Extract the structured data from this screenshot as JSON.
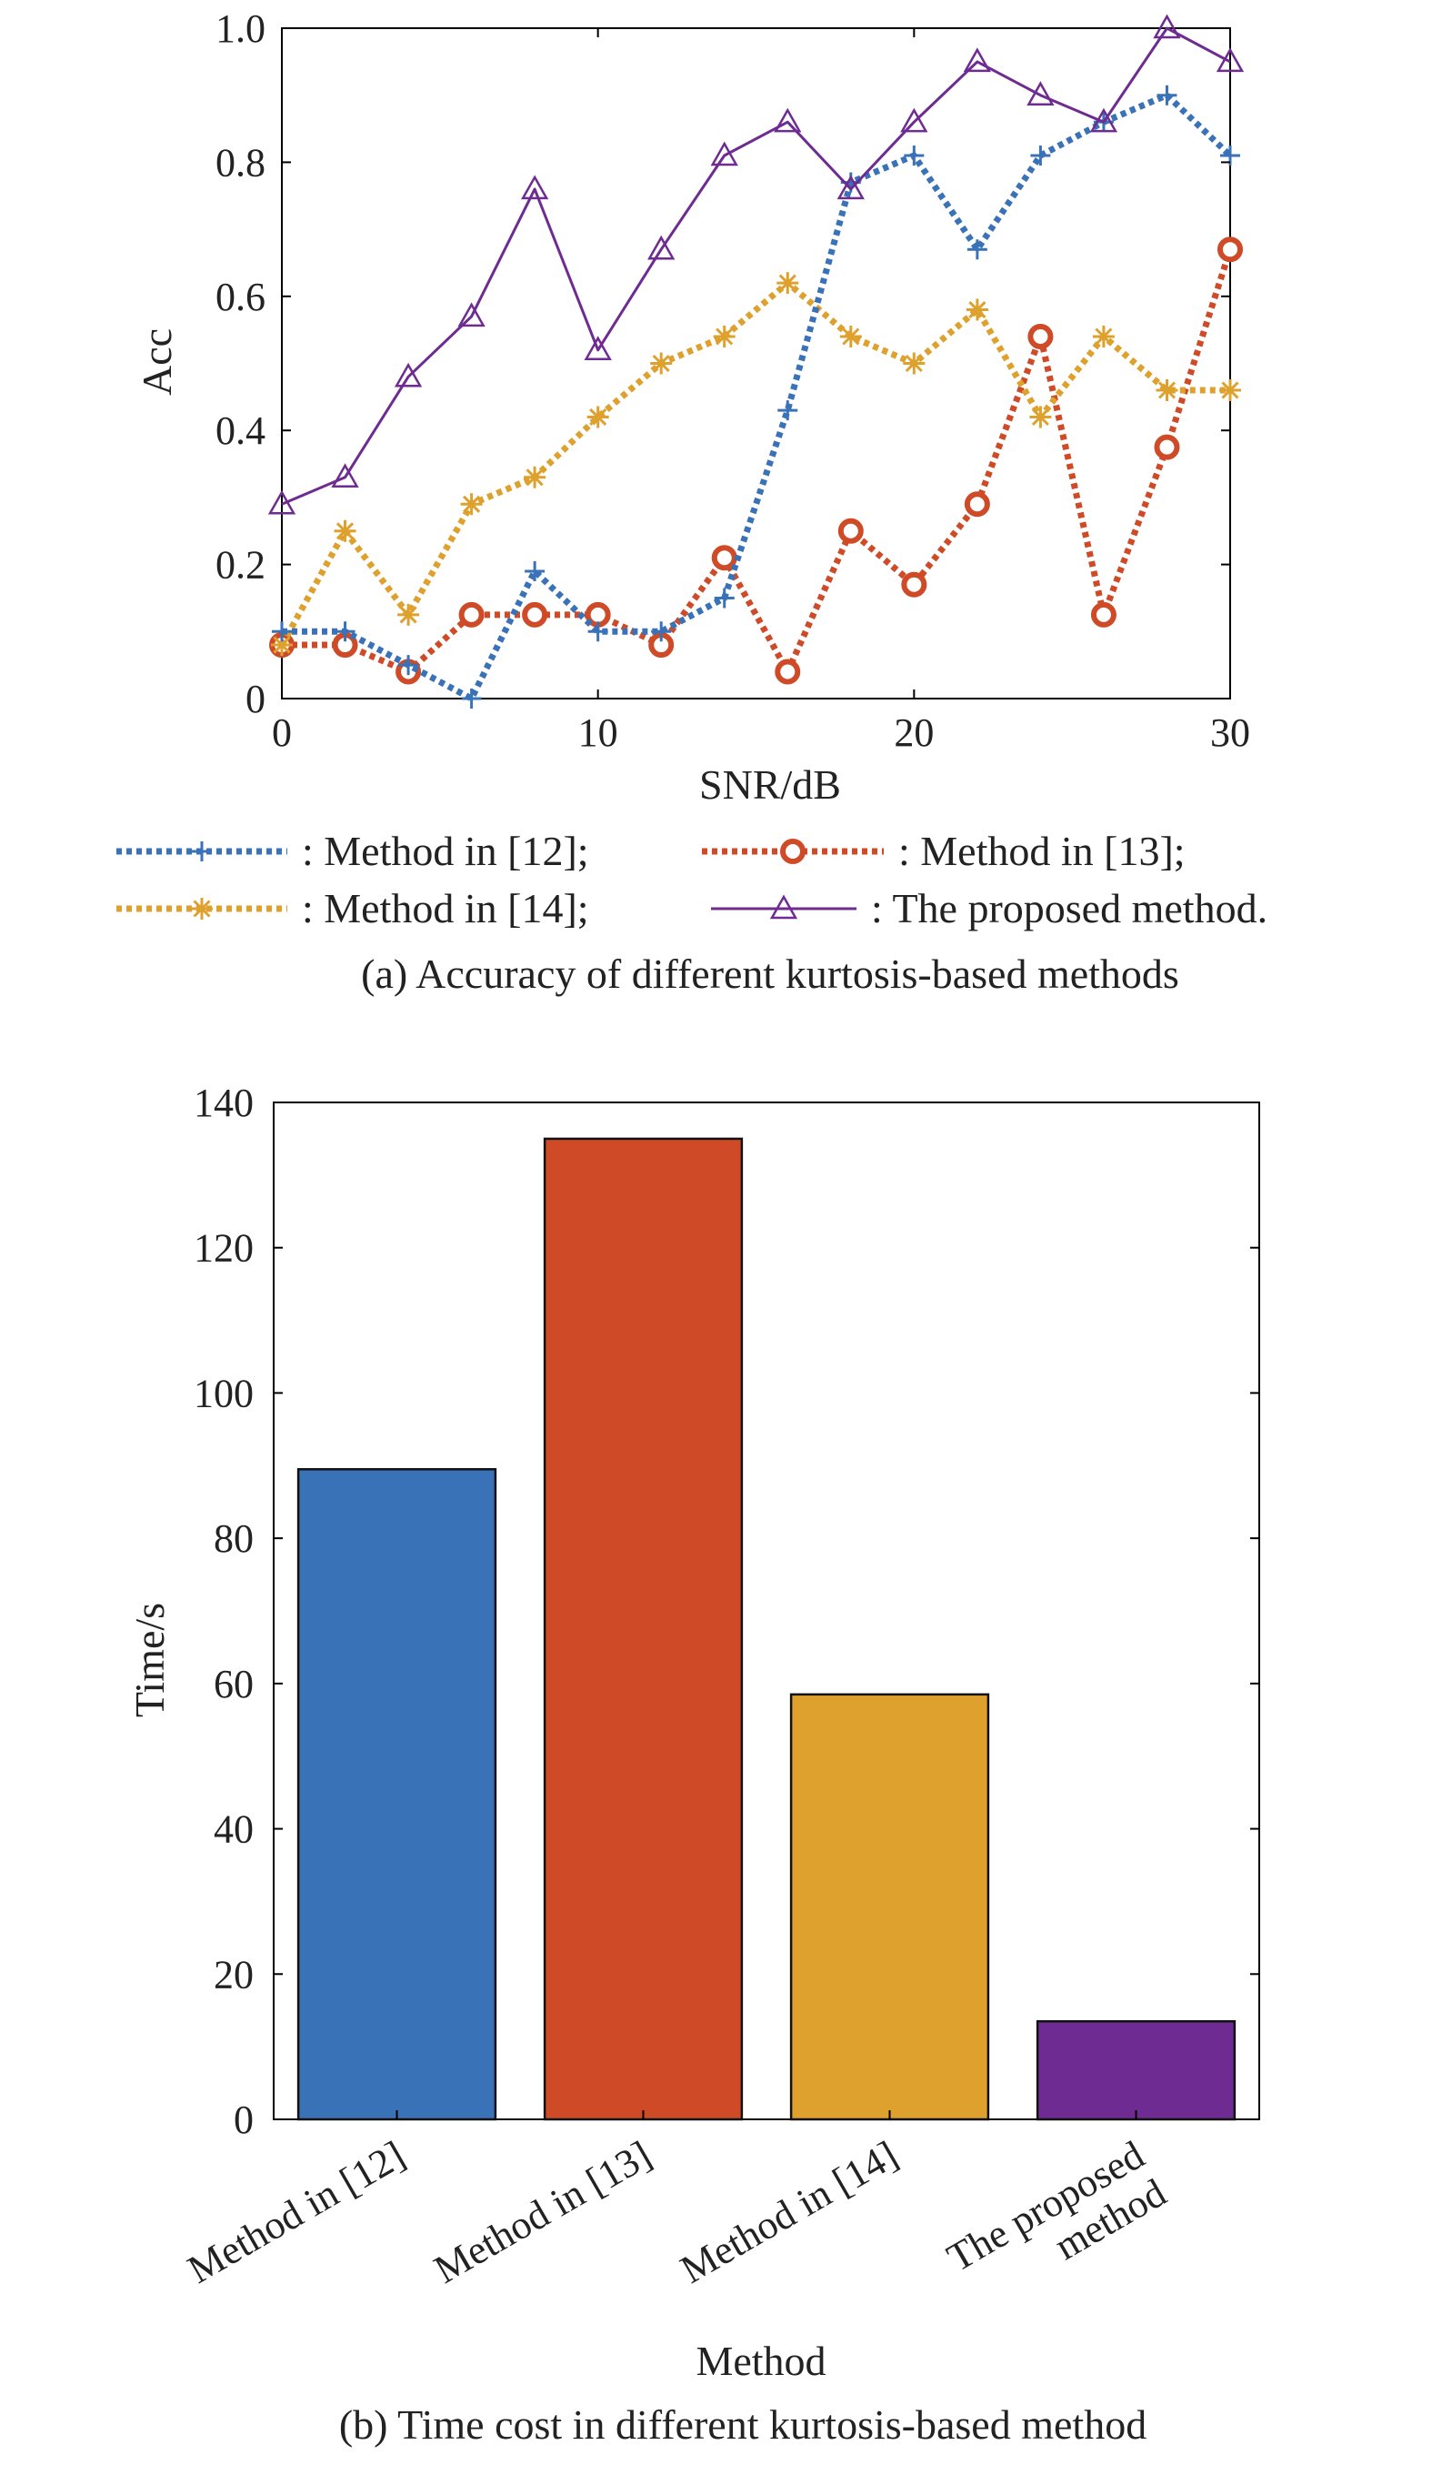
{
  "colors": {
    "method12": "#3a72b8",
    "method13": "#cf4a26",
    "method14": "#dfa12e",
    "proposed": "#6e2b91"
  },
  "chart_data": [
    {
      "type": "line",
      "xlabel": "SNR/dB",
      "ylabel": "Acc",
      "xlim": [
        0,
        30
      ],
      "ylim": [
        0,
        1
      ],
      "x_ticks": [
        "0",
        "10",
        "20",
        "30"
      ],
      "y_ticks": [
        "0",
        "0.2",
        "0.4",
        "0.6",
        "0.8",
        "1.0"
      ],
      "x": [
        0,
        2,
        4,
        6,
        8,
        10,
        12,
        14,
        16,
        18,
        20,
        22,
        24,
        26,
        28,
        30
      ],
      "series": [
        {
          "name": ": Method in [12];",
          "color": "#3a72b8",
          "marker": "plus",
          "dash": "dotted",
          "values": [
            0.1,
            0.1,
            0.05,
            0.0,
            0.19,
            0.1,
            0.1,
            0.15,
            0.43,
            0.77,
            0.81,
            0.67,
            0.81,
            0.86,
            0.9,
            0.81
          ]
        },
        {
          "name": ": Method in [13];",
          "color": "#cf4a26",
          "marker": "circle",
          "dash": "dotted",
          "values": [
            0.08,
            0.08,
            0.04,
            0.125,
            0.125,
            0.125,
            0.08,
            0.21,
            0.04,
            0.25,
            0.17,
            0.29,
            0.54,
            0.125,
            0.375,
            0.67
          ]
        },
        {
          "name": ": Method in [14];",
          "color": "#dfa12e",
          "marker": "asterisk",
          "dash": "dotted",
          "values": [
            0.08,
            0.25,
            0.125,
            0.29,
            0.33,
            0.42,
            0.5,
            0.54,
            0.62,
            0.54,
            0.5,
            0.58,
            0.42,
            0.54,
            0.46,
            0.46
          ]
        },
        {
          "name": ": The proposed method.",
          "color": "#6e2b91",
          "marker": "triangle",
          "dash": "solid",
          "values": [
            0.29,
            0.33,
            0.48,
            0.57,
            0.76,
            0.52,
            0.67,
            0.81,
            0.86,
            0.76,
            0.86,
            0.95,
            0.9,
            0.86,
            1.0,
            0.95
          ]
        }
      ],
      "caption": "(a) Accuracy of different kurtosis-based methods"
    },
    {
      "type": "bar",
      "xlabel": "Method",
      "ylabel": "Time/s",
      "ylim": [
        0,
        140
      ],
      "y_ticks": [
        "0",
        "20",
        "40",
        "60",
        "80",
        "100",
        "120",
        "140"
      ],
      "categories": [
        [
          "Method in [12]"
        ],
        [
          "Method in [13]"
        ],
        [
          "Method in [14]"
        ],
        [
          "The proposed",
          "method"
        ]
      ],
      "values": [
        89.5,
        135,
        58.5,
        13.5
      ],
      "bar_colors": [
        "#3a72b8",
        "#cf4a26",
        "#dfa12e",
        "#6e2b91"
      ],
      "caption": "(b) Time cost in different kurtosis-based method"
    }
  ]
}
